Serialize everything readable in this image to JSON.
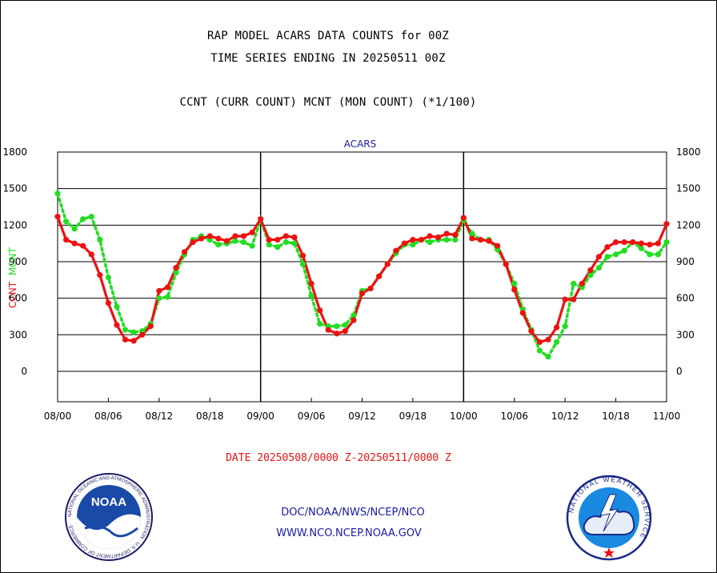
{
  "header": {
    "line1": "RAP MODEL ACARS DATA COUNTS for 00Z",
    "line2": "TIME SERIES ENDING IN 20250511 00Z",
    "line3": "CCNT (CURR COUNT) MCNT (MON COUNT) (*1/100)"
  },
  "footer": {
    "date_range": "DATE 20250508/0000 Z-20250511/0000 Z",
    "org_path": "DOC/NOAA/NWS/NCEP/NCO",
    "website": "WWW.NCO.NCEP.NOAA.GOV"
  },
  "logos": {
    "left": {
      "icon": "noaa-logo",
      "text": "NOAA",
      "ring_text": "NATIONAL OCEANIC AND ATMOSPHERIC ADMINISTRATION · U.S. DEPARTMENT OF COMMERCE"
    },
    "right": {
      "icon": "nws-logo",
      "ring_text": "NATIONAL WEATHER SERVICE"
    }
  },
  "colors": {
    "ccnt": "#ee1111",
    "mcnt": "#22dd22",
    "panel_title": "#1a1aaa",
    "date_text": "#ee1111",
    "footer_text": "#1a1aaa"
  },
  "chart_data": {
    "type": "line",
    "title": "ACARS",
    "ylabel_parts": [
      {
        "text": "CCNT",
        "series": "CCNT"
      },
      {
        "text": "MCNT",
        "series": "MCNT"
      }
    ],
    "ylim": [
      -250,
      1800
    ],
    "yticks": [
      0,
      300,
      600,
      900,
      1200,
      1500,
      1800
    ],
    "xlim": [
      0,
      72
    ],
    "xticks": [
      0,
      6,
      12,
      18,
      24,
      30,
      36,
      42,
      48,
      54,
      60,
      66,
      72
    ],
    "xtick_labels": [
      "08/00",
      "08/06",
      "08/12",
      "08/18",
      "09/00",
      "09/06",
      "09/12",
      "09/18",
      "10/00",
      "10/06",
      "10/12",
      "10/18",
      "11/00"
    ],
    "day_dividers": [
      24,
      48
    ],
    "grid": true,
    "x": [
      0,
      1,
      2,
      3,
      4,
      5,
      6,
      7,
      8,
      9,
      10,
      11,
      12,
      13,
      14,
      15,
      16,
      17,
      18,
      19,
      20,
      21,
      22,
      23,
      24,
      25,
      26,
      27,
      28,
      29,
      30,
      31,
      32,
      33,
      34,
      35,
      36,
      37,
      38,
      39,
      40,
      41,
      42,
      43,
      44,
      45,
      46,
      47,
      48,
      49,
      50,
      51,
      52,
      53,
      54,
      55,
      56,
      57,
      58,
      59,
      60,
      61,
      62,
      63,
      64,
      65,
      66,
      67,
      68,
      69,
      70,
      71,
      72
    ],
    "series": [
      {
        "name": "CCNT",
        "values": [
          1270,
          1080,
          1050,
          1030,
          960,
          790,
          560,
          380,
          260,
          250,
          300,
          370,
          660,
          690,
          850,
          980,
          1060,
          1090,
          1110,
          1090,
          1070,
          1110,
          1110,
          1140,
          1250,
          1080,
          1080,
          1110,
          1100,
          950,
          720,
          500,
          340,
          310,
          330,
          420,
          640,
          680,
          780,
          880,
          990,
          1050,
          1080,
          1080,
          1110,
          1100,
          1130,
          1120,
          1260,
          1090,
          1080,
          1070,
          1030,
          880,
          670,
          480,
          330,
          240,
          260,
          360,
          590,
          590,
          720,
          830,
          940,
          1020,
          1060,
          1060,
          1060,
          1050,
          1040,
          1050,
          1210
        ]
      },
      {
        "name": "MCNT",
        "values": [
          1460,
          1230,
          1170,
          1250,
          1270,
          1080,
          770,
          530,
          340,
          320,
          330,
          390,
          600,
          610,
          810,
          960,
          1080,
          1110,
          1080,
          1040,
          1050,
          1070,
          1060,
          1030,
          1250,
          1040,
          1020,
          1060,
          1050,
          880,
          620,
          390,
          370,
          370,
          380,
          460,
          660,
          680,
          780,
          880,
          970,
          1040,
          1040,
          1080,
          1060,
          1080,
          1080,
          1080,
          1240,
          1130,
          1080,
          1080,
          1000,
          880,
          720,
          510,
          340,
          170,
          120,
          240,
          370,
          720,
          690,
          790,
          850,
          940,
          960,
          990,
          1060,
          1010,
          960,
          960,
          1060
        ]
      }
    ]
  }
}
